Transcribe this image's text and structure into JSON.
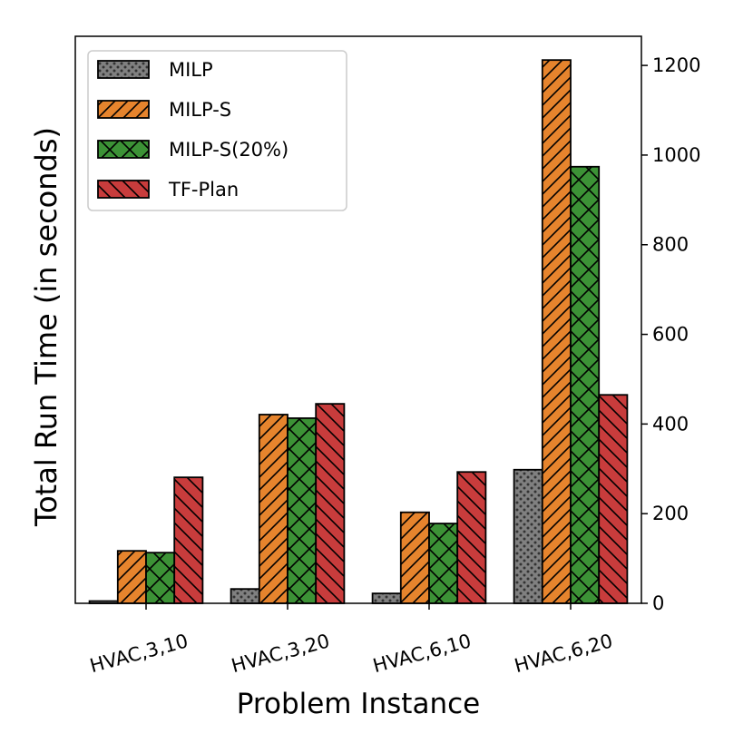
{
  "chart_data": {
    "type": "bar",
    "title": "",
    "xlabel": "Problem Instance",
    "ylabel": "Total Run Time (in seconds)",
    "y_axis_side": "right",
    "ylim": [
      0,
      1265
    ],
    "yticks": [
      0,
      200,
      400,
      600,
      800,
      1000,
      1200
    ],
    "categories": [
      "HVAC,3,10",
      "HVAC,3,20",
      "HVAC,6,10",
      "HVAC,6,20"
    ],
    "series": [
      {
        "name": "MILP",
        "color": "#808080",
        "pattern": "dots",
        "values": [
          5,
          32,
          22,
          298
        ]
      },
      {
        "name": "MILP-S",
        "color": "#e6842d",
        "pattern": "forward-hatch",
        "values": [
          117,
          421,
          203,
          1212
        ]
      },
      {
        "name": "MILP-S(20%)",
        "color": "#3c9236",
        "pattern": "cross-hatch",
        "values": [
          113,
          413,
          178,
          974
        ]
      },
      {
        "name": "TF-Plan",
        "color": "#c83c3c",
        "pattern": "back-hatch",
        "values": [
          281,
          445,
          293,
          465
        ]
      }
    ],
    "legend": {
      "position": "top-left"
    },
    "grid": false
  }
}
